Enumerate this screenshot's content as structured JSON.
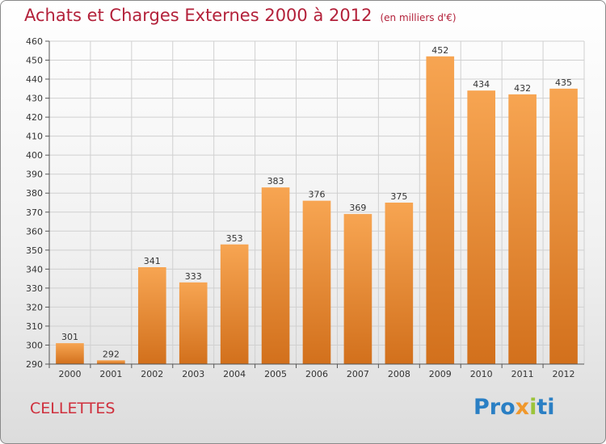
{
  "title": "Achats et Charges Externes 2000 à 2012",
  "unit_label": "(en milliers d'€)",
  "commune": "CELLETTES",
  "logo": {
    "part1": "Pro",
    "part2": "x",
    "part3": "i",
    "part4": "ti"
  },
  "colors": {
    "bar_top": "#f7a552",
    "bar_bottom": "#d2701c",
    "title": "#b3213a",
    "commune": "#cf2f3c"
  },
  "chart_data": {
    "type": "bar",
    "title": "Achats et Charges Externes 2000 à 2012",
    "subtitle": "(en milliers d'€)",
    "xlabel": "",
    "ylabel": "",
    "categories": [
      "2000",
      "2001",
      "2002",
      "2003",
      "2004",
      "2005",
      "2006",
      "2007",
      "2008",
      "2009",
      "2010",
      "2011",
      "2012"
    ],
    "values": [
      301,
      292,
      341,
      333,
      353,
      383,
      376,
      369,
      375,
      452,
      434,
      432,
      435
    ],
    "ylim": [
      290,
      460
    ],
    "ytick_step": 10,
    "grid": true
  }
}
